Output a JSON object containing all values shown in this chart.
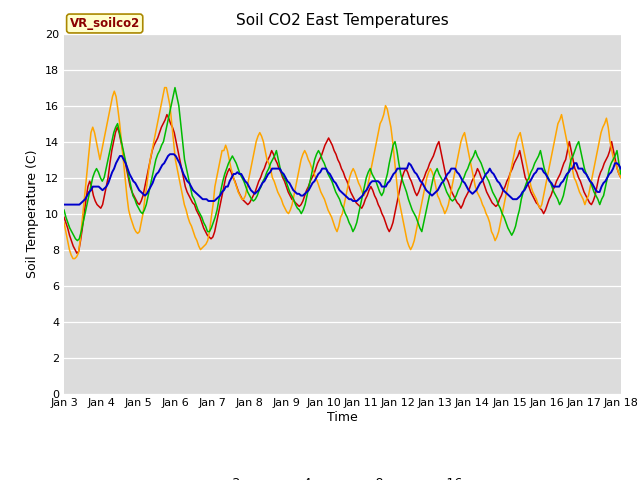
{
  "title": "Soil CO2 East Temperatures",
  "xlabel": "Time",
  "ylabel": "Soil Temperature (C)",
  "ylim": [
    0,
    20
  ],
  "yticks": [
    0,
    2,
    4,
    6,
    8,
    10,
    12,
    14,
    16,
    18,
    20
  ],
  "legend_label": "VR_soilco2",
  "bg_color": "#dcdcdc",
  "fig_color": "#ffffff",
  "series": {
    "-2cm": {
      "color": "#cc0000",
      "lw": 1.1
    },
    "-4cm": {
      "color": "#ffa500",
      "lw": 1.1
    },
    "-8cm": {
      "color": "#00bb00",
      "lw": 1.1
    },
    "-16cm": {
      "color": "#0000cc",
      "lw": 1.4
    }
  },
  "x_labels": [
    "Jan 3",
    "Jan 4",
    "Jan 5",
    "Jan 6",
    "Jan 7",
    "Jan 8",
    "Jan 9",
    "Jan 10",
    "Jan 11",
    "Jan 12",
    "Jan 13",
    "Jan 14",
    "Jan 15",
    "Jan 16",
    "Jan 17",
    "Jan 18"
  ],
  "data_2cm": [
    9.8,
    9.5,
    9.2,
    8.8,
    8.5,
    8.2,
    8.0,
    7.8,
    7.9,
    8.5,
    9.2,
    10.0,
    10.8,
    11.5,
    11.8,
    11.5,
    11.0,
    10.7,
    10.5,
    10.4,
    10.3,
    10.5,
    11.0,
    11.5,
    12.0,
    12.8,
    13.5,
    14.0,
    14.5,
    14.8,
    14.5,
    14.0,
    13.5,
    13.0,
    12.5,
    12.0,
    11.5,
    11.2,
    11.0,
    10.8,
    10.6,
    10.5,
    10.7,
    11.0,
    11.5,
    12.0,
    12.5,
    13.0,
    13.5,
    13.8,
    14.0,
    14.2,
    14.5,
    14.8,
    15.0,
    15.2,
    15.5,
    15.3,
    15.0,
    14.8,
    14.5,
    14.0,
    13.5,
    13.0,
    12.5,
    12.0,
    11.5,
    11.2,
    11.0,
    10.8,
    10.6,
    10.5,
    10.2,
    10.0,
    9.8,
    9.5,
    9.2,
    9.0,
    8.8,
    8.7,
    8.6,
    8.7,
    9.0,
    9.5,
    10.0,
    10.5,
    11.0,
    11.5,
    12.0,
    12.3,
    12.5,
    12.3,
    12.0,
    11.8,
    11.5,
    11.2,
    11.0,
    10.8,
    10.7,
    10.6,
    10.5,
    10.6,
    10.8,
    11.0,
    11.2,
    11.5,
    11.8,
    12.0,
    12.3,
    12.5,
    12.8,
    13.0,
    13.2,
    13.5,
    13.3,
    13.0,
    12.8,
    12.5,
    12.3,
    12.0,
    11.8,
    11.5,
    11.2,
    11.0,
    10.8,
    10.7,
    10.6,
    10.5,
    10.4,
    10.5,
    10.7,
    11.0,
    11.3,
    11.5,
    11.8,
    12.0,
    12.2,
    12.5,
    12.8,
    13.0,
    13.2,
    13.5,
    13.8,
    14.0,
    14.2,
    14.0,
    13.8,
    13.5,
    13.3,
    13.0,
    12.8,
    12.5,
    12.3,
    12.0,
    11.8,
    11.5,
    11.2,
    11.0,
    10.8,
    10.6,
    10.5,
    10.4,
    10.3,
    10.5,
    10.8,
    11.0,
    11.3,
    11.5,
    11.3,
    11.0,
    10.8,
    10.5,
    10.3,
    10.0,
    9.8,
    9.5,
    9.2,
    9.0,
    9.2,
    9.5,
    10.0,
    10.5,
    11.0,
    11.5,
    12.0,
    12.3,
    12.5,
    12.3,
    12.0,
    11.8,
    11.5,
    11.2,
    11.0,
    11.2,
    11.5,
    11.8,
    12.0,
    12.3,
    12.5,
    12.8,
    13.0,
    13.2,
    13.5,
    13.8,
    14.0,
    13.5,
    13.0,
    12.5,
    12.0,
    11.8,
    11.5,
    11.2,
    11.0,
    10.8,
    10.6,
    10.5,
    10.3,
    10.5,
    10.8,
    11.0,
    11.2,
    11.5,
    11.8,
    12.0,
    12.2,
    12.5,
    12.3,
    12.0,
    11.8,
    11.5,
    11.2,
    11.0,
    10.8,
    10.6,
    10.5,
    10.4,
    10.5,
    10.8,
    11.0,
    11.3,
    11.5,
    11.8,
    12.0,
    12.3,
    12.5,
    12.8,
    13.0,
    13.2,
    13.5,
    13.0,
    12.5,
    12.0,
    11.8,
    11.5,
    11.2,
    11.0,
    10.8,
    10.6,
    10.5,
    10.3,
    10.2,
    10.0,
    10.2,
    10.5,
    10.8,
    11.0,
    11.3,
    11.5,
    11.8,
    12.0,
    12.2,
    12.5,
    12.8,
    13.0,
    13.5,
    14.0,
    13.5,
    13.0,
    12.5,
    12.3,
    12.0,
    11.8,
    11.5,
    11.2,
    11.0,
    10.8,
    10.6,
    10.5,
    10.7,
    11.0,
    11.5,
    12.0,
    12.3,
    12.5,
    12.8,
    13.0,
    13.2,
    13.5,
    14.0,
    13.5,
    13.0,
    12.5,
    12.2,
    12.0
  ],
  "data_4cm": [
    9.5,
    9.0,
    8.5,
    8.0,
    7.7,
    7.5,
    7.5,
    7.6,
    7.8,
    8.5,
    9.5,
    10.5,
    11.5,
    12.5,
    13.5,
    14.5,
    14.8,
    14.5,
    14.0,
    13.5,
    13.0,
    13.5,
    14.0,
    14.5,
    15.0,
    15.5,
    16.0,
    16.5,
    16.8,
    16.5,
    15.8,
    15.0,
    14.0,
    13.0,
    12.0,
    11.0,
    10.2,
    9.8,
    9.5,
    9.2,
    9.0,
    8.9,
    9.0,
    9.5,
    10.0,
    10.8,
    11.5,
    12.3,
    13.0,
    13.5,
    14.0,
    14.5,
    15.0,
    15.5,
    16.0,
    16.5,
    17.0,
    17.0,
    16.5,
    16.0,
    15.0,
    14.0,
    13.0,
    12.5,
    12.0,
    11.5,
    11.0,
    10.5,
    10.2,
    9.8,
    9.5,
    9.3,
    9.0,
    8.7,
    8.5,
    8.2,
    8.0,
    8.1,
    8.2,
    8.3,
    8.5,
    9.0,
    9.8,
    10.5,
    11.5,
    12.0,
    12.5,
    13.0,
    13.5,
    13.5,
    13.8,
    13.5,
    13.0,
    12.5,
    12.2,
    11.8,
    11.5,
    11.2,
    11.0,
    10.8,
    10.8,
    11.0,
    11.5,
    12.0,
    12.5,
    13.0,
    13.5,
    14.0,
    14.3,
    14.5,
    14.3,
    14.0,
    13.5,
    13.0,
    12.8,
    12.5,
    12.0,
    11.8,
    11.5,
    11.2,
    11.0,
    10.8,
    10.5,
    10.3,
    10.1,
    10.0,
    10.2,
    10.5,
    11.0,
    11.5,
    12.0,
    12.5,
    13.0,
    13.3,
    13.5,
    13.3,
    13.0,
    12.8,
    12.5,
    12.3,
    12.0,
    11.8,
    11.5,
    11.2,
    11.0,
    10.8,
    10.5,
    10.2,
    10.0,
    9.8,
    9.5,
    9.2,
    9.0,
    9.3,
    9.8,
    10.0,
    10.5,
    11.0,
    11.5,
    12.0,
    12.3,
    12.5,
    12.3,
    12.0,
    11.7,
    11.5,
    11.2,
    11.0,
    11.2,
    11.5,
    12.0,
    12.5,
    13.0,
    13.5,
    14.0,
    14.5,
    15.0,
    15.2,
    15.5,
    16.0,
    15.8,
    15.3,
    14.8,
    14.0,
    13.0,
    12.0,
    11.0,
    10.5,
    10.0,
    9.5,
    9.0,
    8.5,
    8.2,
    8.0,
    8.2,
    8.5,
    9.0,
    9.5,
    10.0,
    10.5,
    11.0,
    11.5,
    12.0,
    12.3,
    12.5,
    12.3,
    12.0,
    11.5,
    11.0,
    10.8,
    10.5,
    10.3,
    10.0,
    10.2,
    10.5,
    11.0,
    11.5,
    12.0,
    12.5,
    13.0,
    13.5,
    14.0,
    14.3,
    14.5,
    14.0,
    13.5,
    13.0,
    12.5,
    12.0,
    11.5,
    11.2,
    11.0,
    10.8,
    10.5,
    10.3,
    10.0,
    9.8,
    9.5,
    9.0,
    8.8,
    8.5,
    8.7,
    9.0,
    9.5,
    10.0,
    10.5,
    11.0,
    11.5,
    12.0,
    12.5,
    13.0,
    13.5,
    14.0,
    14.3,
    14.5,
    14.0,
    13.5,
    13.0,
    12.5,
    12.0,
    11.5,
    11.2,
    11.0,
    10.8,
    10.5,
    10.3,
    10.5,
    11.0,
    11.5,
    12.0,
    12.5,
    13.0,
    13.5,
    14.0,
    14.5,
    15.0,
    15.2,
    15.5,
    15.0,
    14.5,
    14.0,
    13.5,
    13.0,
    12.5,
    12.0,
    11.8,
    11.5,
    11.2,
    11.0,
    10.8,
    10.5,
    10.8,
    11.0,
    11.5,
    12.0,
    12.5,
    13.0,
    13.5,
    14.0,
    14.5,
    14.8,
    15.0,
    15.3,
    14.8,
    14.0,
    13.5,
    13.0,
    12.8,
    12.5,
    12.2,
    12.0
  ],
  "data_8cm": [
    10.2,
    9.8,
    9.5,
    9.2,
    9.0,
    8.8,
    8.6,
    8.5,
    8.6,
    9.0,
    9.5,
    10.0,
    10.5,
    11.0,
    11.5,
    12.0,
    12.3,
    12.5,
    12.3,
    12.0,
    11.8,
    12.0,
    12.5,
    13.0,
    13.5,
    14.0,
    14.5,
    14.8,
    15.0,
    14.5,
    14.0,
    13.5,
    13.0,
    12.5,
    12.0,
    11.5,
    11.0,
    10.8,
    10.5,
    10.3,
    10.1,
    10.0,
    10.2,
    10.5,
    11.0,
    11.5,
    12.0,
    12.5,
    13.0,
    13.3,
    13.5,
    13.8,
    14.0,
    14.5,
    15.0,
    15.5,
    16.0,
    16.5,
    17.0,
    16.5,
    16.0,
    15.0,
    14.0,
    13.0,
    12.5,
    12.0,
    11.5,
    11.0,
    10.8,
    10.5,
    10.2,
    10.0,
    9.8,
    9.5,
    9.3,
    9.0,
    9.0,
    9.2,
    9.5,
    9.8,
    10.2,
    10.8,
    11.3,
    11.8,
    12.2,
    12.5,
    12.8,
    13.0,
    13.2,
    13.0,
    12.8,
    12.5,
    12.2,
    12.0,
    11.8,
    11.5,
    11.2,
    11.0,
    10.8,
    10.7,
    10.8,
    11.0,
    11.3,
    11.5,
    11.8,
    12.0,
    12.3,
    12.5,
    12.8,
    13.0,
    13.2,
    13.5,
    13.0,
    12.5,
    12.2,
    12.0,
    11.8,
    11.5,
    11.2,
    11.0,
    10.8,
    10.5,
    10.3,
    10.2,
    10.0,
    10.2,
    10.5,
    11.0,
    11.5,
    12.0,
    12.5,
    13.0,
    13.3,
    13.5,
    13.3,
    13.0,
    12.8,
    12.5,
    12.2,
    12.0,
    11.8,
    11.5,
    11.2,
    11.0,
    10.8,
    10.5,
    10.3,
    10.0,
    9.8,
    9.5,
    9.3,
    9.0,
    9.2,
    9.5,
    10.0,
    10.5,
    11.0,
    11.5,
    12.0,
    12.3,
    12.5,
    12.2,
    12.0,
    11.8,
    11.5,
    11.2,
    11.0,
    11.2,
    11.8,
    12.2,
    12.8,
    13.3,
    13.8,
    14.0,
    13.5,
    12.8,
    12.2,
    11.8,
    11.5,
    11.2,
    10.8,
    10.5,
    10.2,
    10.0,
    9.8,
    9.5,
    9.2,
    9.0,
    9.5,
    10.0,
    10.5,
    11.0,
    11.5,
    12.0,
    12.3,
    12.5,
    12.2,
    12.0,
    11.8,
    11.5,
    11.2,
    11.0,
    10.8,
    10.7,
    10.8,
    11.0,
    11.3,
    11.5,
    11.8,
    12.0,
    12.3,
    12.5,
    12.8,
    13.0,
    13.2,
    13.5,
    13.2,
    13.0,
    12.8,
    12.5,
    12.2,
    12.0,
    11.8,
    11.5,
    11.2,
    11.0,
    10.8,
    10.5,
    10.3,
    10.0,
    9.8,
    9.5,
    9.2,
    9.0,
    8.8,
    9.0,
    9.3,
    9.8,
    10.2,
    10.8,
    11.2,
    11.5,
    11.8,
    12.0,
    12.3,
    12.5,
    12.8,
    13.0,
    13.2,
    13.5,
    13.0,
    12.5,
    12.2,
    12.0,
    11.8,
    11.5,
    11.2,
    11.0,
    10.8,
    10.5,
    10.7,
    11.0,
    11.5,
    12.0,
    12.5,
    13.0,
    13.2,
    13.5,
    13.8,
    14.0,
    13.5,
    13.0,
    12.5,
    12.2,
    12.0,
    11.8,
    11.5,
    11.2,
    11.0,
    10.8,
    10.5,
    10.8,
    11.0,
    11.5,
    12.0,
    12.5,
    12.8,
    13.0,
    13.2,
    13.5,
    12.8,
    12.2
  ],
  "data_16cm": [
    10.5,
    10.5,
    10.5,
    10.5,
    10.5,
    10.5,
    10.5,
    10.5,
    10.5,
    10.6,
    10.7,
    10.8,
    11.0,
    11.2,
    11.3,
    11.5,
    11.5,
    11.5,
    11.5,
    11.4,
    11.3,
    11.4,
    11.5,
    11.7,
    12.0,
    12.3,
    12.5,
    12.8,
    13.0,
    13.2,
    13.2,
    13.0,
    12.8,
    12.5,
    12.2,
    12.0,
    11.8,
    11.7,
    11.5,
    11.3,
    11.2,
    11.1,
    11.0,
    11.1,
    11.3,
    11.5,
    11.7,
    12.0,
    12.2,
    12.3,
    12.5,
    12.7,
    12.8,
    13.0,
    13.2,
    13.3,
    13.3,
    13.3,
    13.2,
    13.0,
    12.8,
    12.5,
    12.2,
    12.0,
    11.8,
    11.7,
    11.5,
    11.3,
    11.2,
    11.1,
    11.0,
    10.9,
    10.8,
    10.8,
    10.8,
    10.7,
    10.7,
    10.7,
    10.7,
    10.8,
    10.9,
    11.0,
    11.2,
    11.3,
    11.5,
    11.5,
    11.8,
    12.0,
    12.2,
    12.2,
    12.3,
    12.2,
    12.2,
    12.0,
    11.8,
    11.7,
    11.5,
    11.3,
    11.2,
    11.1,
    11.2,
    11.3,
    11.5,
    11.7,
    11.8,
    12.0,
    12.2,
    12.3,
    12.5,
    12.5,
    12.5,
    12.5,
    12.5,
    12.3,
    12.2,
    12.0,
    11.8,
    11.7,
    11.5,
    11.3,
    11.2,
    11.1,
    11.1,
    11.0,
    11.0,
    11.1,
    11.2,
    11.3,
    11.5,
    11.7,
    11.8,
    12.0,
    12.2,
    12.3,
    12.5,
    12.5,
    12.5,
    12.3,
    12.2,
    12.0,
    11.8,
    11.7,
    11.5,
    11.3,
    11.2,
    11.1,
    11.0,
    10.9,
    10.8,
    10.8,
    10.7,
    10.7,
    10.7,
    10.8,
    10.9,
    11.0,
    11.2,
    11.3,
    11.5,
    11.7,
    11.8,
    11.8,
    11.8,
    11.8,
    11.7,
    11.5,
    11.5,
    11.5,
    11.7,
    11.8,
    12.0,
    12.2,
    12.3,
    12.5,
    12.5,
    12.5,
    12.5,
    12.5,
    12.5,
    12.8,
    12.7,
    12.5,
    12.3,
    12.2,
    12.0,
    11.8,
    11.7,
    11.5,
    11.3,
    11.2,
    11.1,
    11.0,
    11.1,
    11.2,
    11.3,
    11.5,
    11.7,
    11.8,
    12.0,
    12.2,
    12.3,
    12.5,
    12.5,
    12.5,
    12.3,
    12.2,
    12.0,
    11.8,
    11.7,
    11.5,
    11.3,
    11.2,
    11.1,
    11.2,
    11.3,
    11.5,
    11.7,
    11.8,
    12.0,
    12.2,
    12.3,
    12.5,
    12.3,
    12.2,
    12.0,
    11.8,
    11.7,
    11.5,
    11.3,
    11.2,
    11.1,
    11.0,
    10.9,
    10.8,
    10.8,
    10.8,
    10.9,
    11.0,
    11.2,
    11.3,
    11.5,
    11.7,
    11.8,
    12.0,
    12.2,
    12.3,
    12.5,
    12.5,
    12.5,
    12.3,
    12.2,
    12.0,
    11.8,
    11.7,
    11.5,
    11.5,
    11.5,
    11.5,
    11.7,
    11.8,
    12.0,
    12.2,
    12.3,
    12.5,
    12.5,
    12.8,
    12.8,
    12.5,
    12.5,
    12.5,
    12.3,
    12.2,
    12.0,
    11.8,
    11.7,
    11.5,
    11.3,
    11.2,
    11.2,
    11.5,
    11.7,
    11.8,
    12.0,
    12.2,
    12.3,
    12.5,
    12.8,
    12.8,
    12.7,
    12.5
  ]
}
